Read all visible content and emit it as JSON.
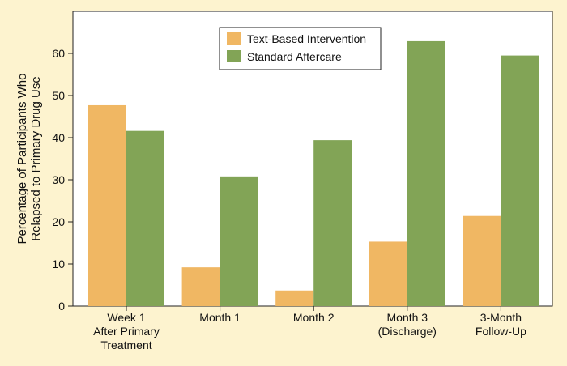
{
  "chart_data": {
    "type": "bar",
    "categories": [
      [
        "Week 1",
        "After Primary",
        "Treatment"
      ],
      [
        "Month 1"
      ],
      [
        "Month 2"
      ],
      [
        "Month 3",
        "(Discharge)"
      ],
      [
        "3-Month",
        "Follow-Up"
      ]
    ],
    "series": [
      {
        "name": "Text-Based Intervention",
        "color": "#f0b763",
        "values": [
          47.7,
          9.2,
          3.7,
          15.3,
          21.4
        ]
      },
      {
        "name": "Standard Aftercare",
        "color": "#82a456",
        "values": [
          41.6,
          30.8,
          39.4,
          62.9,
          59.5
        ]
      }
    ],
    "ylabel": [
      "Percentage of Participants Who",
      "Relapsed to Primary Drug Use"
    ],
    "ylim": [
      0,
      70
    ],
    "yticks": [
      0,
      10,
      20,
      30,
      40,
      50,
      60
    ],
    "legend_position": "top-center",
    "grid": false,
    "background": "#fdf3cf",
    "plot_background": "#ffffff"
  }
}
